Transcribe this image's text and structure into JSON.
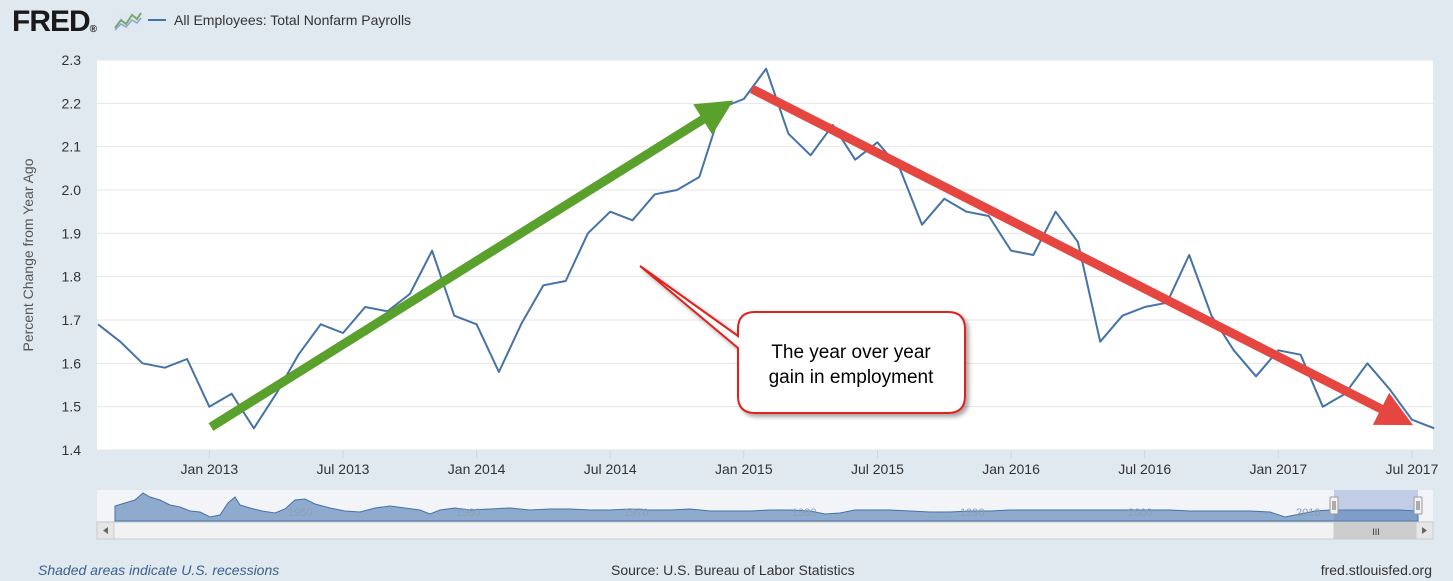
{
  "header": {
    "logo_text": "FRED",
    "logo_symbol": "®",
    "legend_label": "All Employees: Total Nonfarm Payrolls"
  },
  "footer": {
    "recession_note": "Shaded areas indicate U.S. recessions",
    "source": "Source: U.S. Bureau of Labor Statistics",
    "url": "fred.stlouisfed.org"
  },
  "navigator": {
    "decade_labels": [
      "1950",
      "1960",
      "1970",
      "1980",
      "1990",
      "2000",
      "2010"
    ],
    "scroll_grip": "III"
  },
  "annotations": {
    "callout_text": [
      "The year over year",
      "gain in employment"
    ],
    "up_arrow_color": "#5aa02c",
    "down_arrow_color": "#e64640"
  },
  "colors": {
    "series": "#4572a7",
    "plot_bg": "#ffffff",
    "page_bg": "#e1e9f0",
    "navigator_fill": "#7d9cc6"
  },
  "chart_data": {
    "type": "line",
    "title": "All Employees: Total Nonfarm Payrolls",
    "ylabel": "Percent Change from Year Ago",
    "xlabel": "",
    "ylim": [
      1.4,
      2.3
    ],
    "yticks": [
      "1.4",
      "1.5",
      "1.6",
      "1.7",
      "1.8",
      "1.9",
      "2.0",
      "2.1",
      "2.2",
      "2.3"
    ],
    "xticks": [
      "Jan 2013",
      "Jul 2013",
      "Jan 2014",
      "Jul 2014",
      "Jan 2015",
      "Jul 2015",
      "Jan 2016",
      "Jul 2016",
      "Jan 2017",
      "Jul 2017"
    ],
    "x": [
      "2012-08",
      "2012-09",
      "2012-10",
      "2012-11",
      "2012-12",
      "2013-01",
      "2013-02",
      "2013-03",
      "2013-04",
      "2013-05",
      "2013-06",
      "2013-07",
      "2013-08",
      "2013-09",
      "2013-10",
      "2013-11",
      "2013-12",
      "2014-01",
      "2014-02",
      "2014-03",
      "2014-04",
      "2014-05",
      "2014-06",
      "2014-07",
      "2014-08",
      "2014-09",
      "2014-10",
      "2014-11",
      "2014-12",
      "2015-01",
      "2015-02",
      "2015-03",
      "2015-04",
      "2015-05",
      "2015-06",
      "2015-07",
      "2015-08",
      "2015-09",
      "2015-10",
      "2015-11",
      "2015-12",
      "2016-01",
      "2016-02",
      "2016-03",
      "2016-04",
      "2016-05",
      "2016-06",
      "2016-07",
      "2016-08",
      "2016-09",
      "2016-10",
      "2016-11",
      "2016-12",
      "2017-01",
      "2017-02",
      "2017-03",
      "2017-04",
      "2017-05",
      "2017-06",
      "2017-07",
      "2017-08"
    ],
    "series": [
      {
        "name": "All Employees: Total Nonfarm Payrolls",
        "values": [
          1.69,
          1.65,
          1.6,
          1.59,
          1.61,
          1.5,
          1.53,
          1.45,
          1.53,
          1.62,
          1.69,
          1.67,
          1.73,
          1.72,
          1.76,
          1.86,
          1.71,
          1.69,
          1.58,
          1.69,
          1.78,
          1.79,
          1.9,
          1.95,
          1.93,
          1.99,
          2.0,
          2.03,
          2.19,
          2.21,
          2.28,
          2.13,
          2.08,
          2.15,
          2.07,
          2.11,
          2.05,
          1.92,
          1.98,
          1.95,
          1.94,
          1.86,
          1.85,
          1.95,
          1.88,
          1.65,
          1.71,
          1.73,
          1.74,
          1.85,
          1.71,
          1.63,
          1.57,
          1.63,
          1.62,
          1.5,
          1.53,
          1.6,
          1.54,
          1.47,
          1.45
        ]
      }
    ],
    "legend": "top-left"
  }
}
